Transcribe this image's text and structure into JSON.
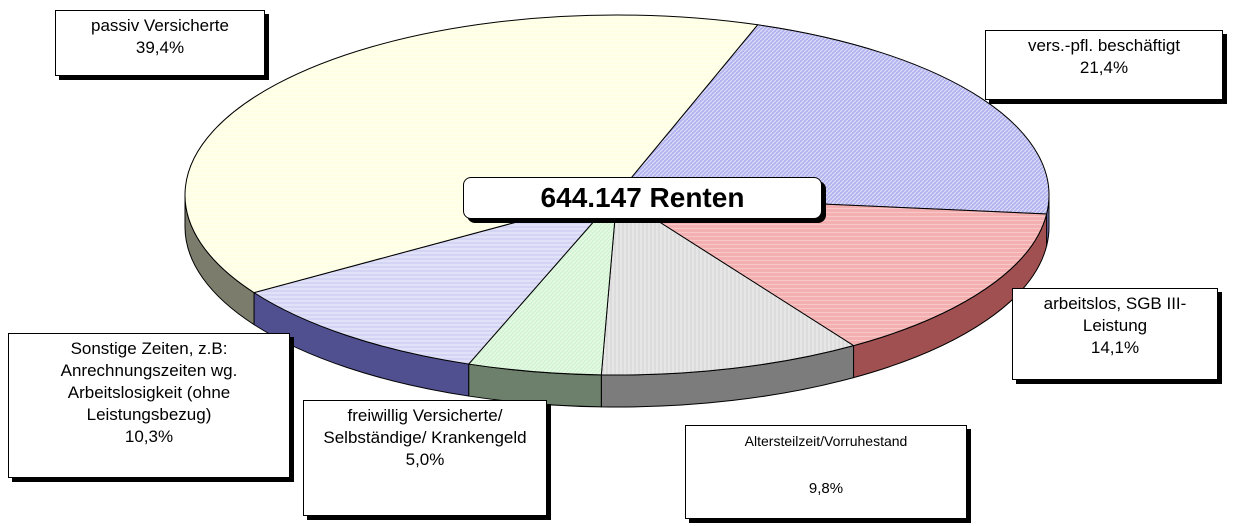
{
  "chart_data": {
    "type": "pie",
    "center_label": "644.147 Renten",
    "categories": [
      "vers.-pfl. beschäftigt",
      "arbeitslos, SGB III-Leistung",
      "Altersteilzeit/Vorruhestand",
      "freiwillig Versicherte/ Selbständige/ Krankengeld",
      "Sonstige Zeiten, z.B: Anrechnungszeiten wg. Arbeitslosigkeit (ohne Leistungsbezug)",
      "passiv Versicherte"
    ],
    "values": [
      21.4,
      14.1,
      9.8,
      5.0,
      10.3,
      39.4
    ],
    "value_labels": [
      "21,4%",
      "14,1%",
      "9,8%",
      "5,0%",
      "10,3%",
      "39,4%"
    ],
    "colors": [
      "#b4b4f0",
      "#f4b0b0",
      "#dcdcdc",
      "#d2f4d2",
      "#d4d4f4",
      "#ffffe6"
    ],
    "side_colors": [
      "#7070b0",
      "#a05050",
      "#7c7c7c",
      "#6c806c",
      "#505090",
      "#7c7c6c"
    ]
  }
}
